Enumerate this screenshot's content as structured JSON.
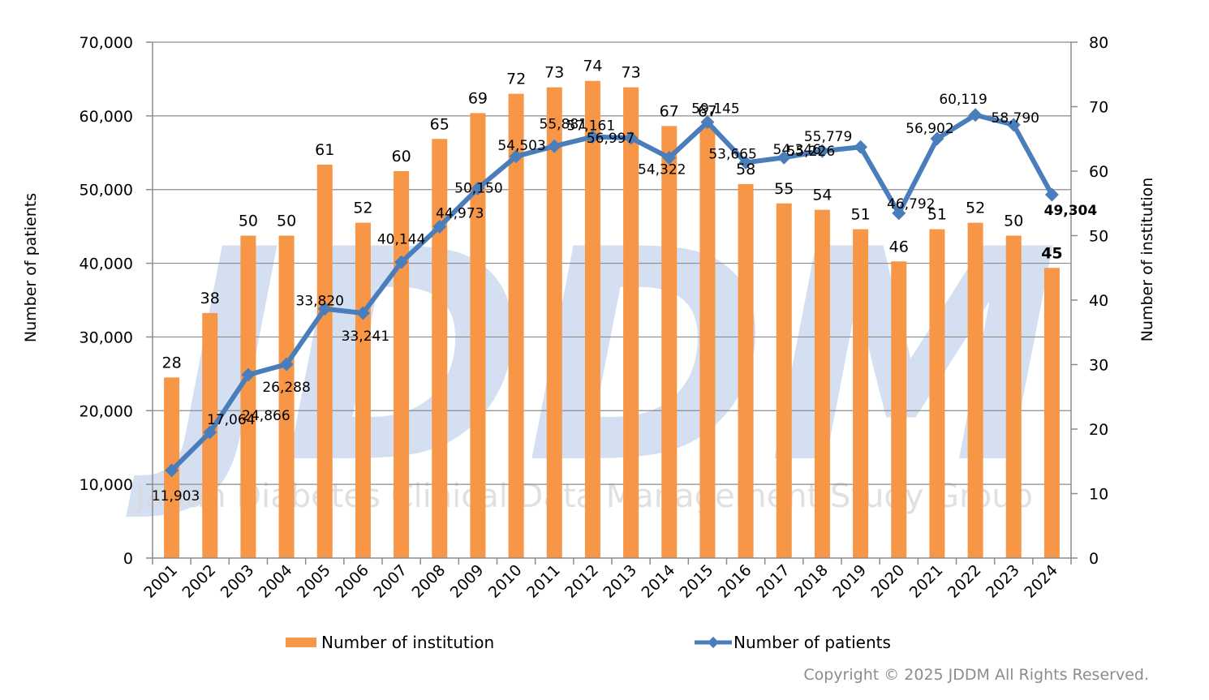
{
  "chart_data": {
    "type": "bar+line",
    "categories": [
      "2001",
      "2002",
      "2003",
      "2004",
      "2005",
      "2006",
      "2007",
      "2008",
      "2009",
      "2010",
      "2011",
      "2012",
      "2013",
      "2014",
      "2015",
      "2016",
      "2017",
      "2018",
      "2019",
      "2020",
      "2021",
      "2022",
      "2023",
      "2024"
    ],
    "series": [
      {
        "name": "Number of institution",
        "type": "bar",
        "axis": "right",
        "color": "#f79646",
        "values": [
          28,
          38,
          50,
          50,
          61,
          52,
          60,
          65,
          69,
          72,
          73,
          74,
          73,
          67,
          67,
          58,
          55,
          54,
          51,
          46,
          51,
          52,
          50,
          45
        ],
        "labels": [
          "28",
          "38",
          "50",
          "50",
          "61",
          "52",
          "60",
          "65",
          "69",
          "72",
          "73",
          "74",
          "73",
          "67",
          "67",
          "58",
          "55",
          "54",
          "51",
          "46",
          "51",
          "52",
          "50",
          "45"
        ]
      },
      {
        "name": "Number of patients",
        "type": "line",
        "axis": "left",
        "color": "#4a7ebb",
        "values": [
          11903,
          17064,
          24866,
          26288,
          33820,
          33241,
          40144,
          44973,
          50150,
          54503,
          55881,
          57161,
          56997,
          54322,
          59145,
          53665,
          54346,
          55226,
          55779,
          46792,
          56902,
          60119,
          58790,
          49304
        ],
        "labels": [
          "11,903",
          "17,064",
          "24,866",
          "26,288",
          "33,820",
          "33,241",
          "40,144",
          "44,973",
          "50,150",
          "54,503",
          "55,881",
          "57,161",
          "56,997",
          "54,322",
          "59,145",
          "53,665",
          "54,346",
          "55,226",
          "55,779",
          "46,792",
          "56,902",
          "60,119",
          "58,790",
          "49,304"
        ]
      }
    ],
    "ylabel_left": "Number of patients",
    "ylabel_right": "Number of institution",
    "ylim_left": [
      0,
      70000
    ],
    "ylim_right": [
      0,
      80
    ],
    "yticks_left": [
      "0",
      "10,000",
      "20,000",
      "30,000",
      "40,000",
      "50,000",
      "60,000",
      "70,000"
    ],
    "yticks_right": [
      "0",
      "10",
      "20",
      "30",
      "40",
      "50",
      "60",
      "70",
      "80"
    ],
    "grid": true,
    "legend_position": "bottom"
  },
  "legend": {
    "bar_label": "Number of institution",
    "line_label": "Number of patients"
  },
  "watermark": {
    "text": "Japan Diabetes Clinical Data Management Study Group",
    "logo_text": "JDDM"
  },
  "copyright": "Copyright © 2025 JDDM All Rights Reserved."
}
